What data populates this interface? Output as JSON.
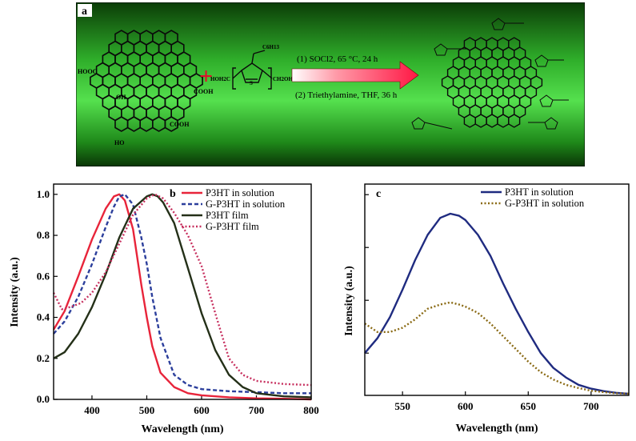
{
  "scheme": {
    "panel_label": "a",
    "graphene_labels": {
      "cooh_left": "HOOC",
      "cooh_right": "COOH",
      "cooh_bottom": "COOH",
      "oh_center": "OH",
      "ho_bottom": "HO"
    },
    "monomer_labels": {
      "hexyl": "C6H13",
      "left": "HOH2C",
      "right": "CH2OH",
      "sulfur": "S"
    },
    "step1": "(1) SOCl2, 65 °C, 24 h",
    "step2": "(2) Triethylamine, THF, 36 h",
    "plus": "+",
    "colors": {
      "background_dark": "#0b3d07",
      "background_light": "#3fd23a",
      "plus": "#e0112b",
      "arrow": "#ff1744"
    }
  },
  "chart_data": [
    {
      "panel_label": "b",
      "type": "line",
      "xlabel": "Wavelength (nm)",
      "ylabel": "Intensity (a.u.)",
      "xlim": [
        330,
        800
      ],
      "ylim": [
        0,
        1.05
      ],
      "xticks": [
        400,
        500,
        600,
        700,
        800
      ],
      "yticks": [
        "0.0",
        "0.2",
        "0.4",
        "0.6",
        "0.8",
        "1.0"
      ],
      "legend_position": "top-right",
      "series": [
        {
          "name": "P3HT in solution",
          "color": "#e8243a",
          "dash": "solid",
          "x": [
            330,
            350,
            375,
            400,
            425,
            440,
            450,
            460,
            475,
            490,
            500,
            510,
            525,
            550,
            575,
            600,
            650,
            700,
            750,
            800
          ],
          "y": [
            0.34,
            0.43,
            0.6,
            0.78,
            0.93,
            0.99,
            1.0,
            0.97,
            0.83,
            0.56,
            0.4,
            0.26,
            0.13,
            0.06,
            0.03,
            0.02,
            0.01,
            0.005,
            0.003,
            0.0
          ]
        },
        {
          "name": "G-P3HT in solution",
          "color": "#2c3f9c",
          "dash": "dash",
          "x": [
            330,
            350,
            375,
            400,
            425,
            440,
            450,
            460,
            475,
            490,
            500,
            510,
            525,
            550,
            575,
            600,
            650,
            700,
            750,
            800
          ],
          "y": [
            0.32,
            0.38,
            0.5,
            0.66,
            0.84,
            0.94,
            0.99,
            1.0,
            0.95,
            0.79,
            0.66,
            0.5,
            0.3,
            0.12,
            0.07,
            0.05,
            0.04,
            0.035,
            0.03,
            0.03
          ]
        },
        {
          "name": "P3HT film",
          "color": "#243018",
          "dash": "solid",
          "x": [
            330,
            350,
            375,
            400,
            425,
            450,
            475,
            500,
            510,
            520,
            530,
            550,
            575,
            600,
            625,
            650,
            675,
            700,
            750,
            800
          ],
          "y": [
            0.2,
            0.23,
            0.32,
            0.45,
            0.61,
            0.79,
            0.93,
            0.99,
            1.0,
            0.99,
            0.96,
            0.86,
            0.64,
            0.42,
            0.24,
            0.12,
            0.06,
            0.03,
            0.015,
            0.01
          ]
        },
        {
          "name": "G-P3HT film",
          "color": "#c7305f",
          "dash": "dot",
          "x": [
            330,
            345,
            360,
            380,
            400,
            425,
            450,
            475,
            500,
            515,
            530,
            550,
            575,
            600,
            625,
            650,
            675,
            700,
            750,
            800
          ],
          "y": [
            0.52,
            0.44,
            0.45,
            0.47,
            0.52,
            0.62,
            0.76,
            0.9,
            0.98,
            1.0,
            0.98,
            0.91,
            0.8,
            0.65,
            0.42,
            0.2,
            0.12,
            0.09,
            0.075,
            0.07
          ]
        }
      ]
    },
    {
      "panel_label": "c",
      "type": "line",
      "xlabel": "Wavelength (nm)",
      "ylabel": "Intensity (a.u.)",
      "xlim": [
        520,
        730
      ],
      "ylim": [
        0,
        1
      ],
      "xticks": [
        550,
        600,
        650,
        700
      ],
      "yticks": [],
      "legend_position": "top-right",
      "series": [
        {
          "name": "P3HT in solution",
          "color": "#1f2b80",
          "dash": "solid",
          "x": [
            520,
            530,
            540,
            550,
            560,
            570,
            580,
            588,
            595,
            600,
            610,
            620,
            630,
            640,
            650,
            660,
            670,
            680,
            690,
            700,
            710,
            720,
            730
          ],
          "y": [
            0.2,
            0.27,
            0.37,
            0.5,
            0.64,
            0.76,
            0.84,
            0.86,
            0.85,
            0.83,
            0.76,
            0.66,
            0.53,
            0.41,
            0.3,
            0.2,
            0.13,
            0.085,
            0.05,
            0.032,
            0.02,
            0.012,
            0.008
          ]
        },
        {
          "name": "G-P3HT in solution",
          "color": "#8a6a14",
          "dash": "dot",
          "x": [
            520,
            530,
            540,
            550,
            560,
            570,
            580,
            588,
            595,
            600,
            610,
            620,
            630,
            640,
            650,
            660,
            670,
            680,
            690,
            700,
            710,
            720,
            730
          ],
          "y": [
            0.34,
            0.3,
            0.3,
            0.32,
            0.36,
            0.41,
            0.43,
            0.44,
            0.43,
            0.42,
            0.39,
            0.34,
            0.28,
            0.22,
            0.16,
            0.11,
            0.075,
            0.05,
            0.035,
            0.022,
            0.015,
            0.01,
            0.008
          ]
        }
      ]
    }
  ]
}
